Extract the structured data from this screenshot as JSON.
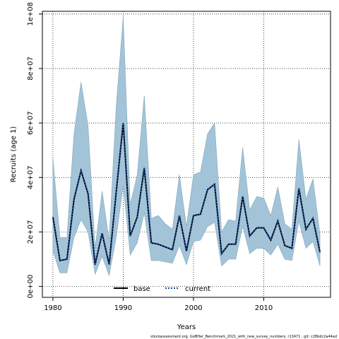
{
  "chart_data": {
    "type": "area",
    "xlabel": "Years",
    "ylabel": "Recruits (age 1)",
    "xlim": [
      1978.5,
      2019.5
    ],
    "ylim": [
      -4000000,
      101000000
    ],
    "x_ticks": [
      1980,
      1990,
      2000,
      2010
    ],
    "x_tick_labels": [
      "1980",
      "1990",
      "2000",
      "2010"
    ],
    "y_ticks": [
      0,
      20000000,
      40000000,
      60000000,
      80000000,
      100000000
    ],
    "y_tick_labels": [
      "0e+00",
      "2e+07",
      "4e+07",
      "6e+07",
      "8e+07",
      "1e+08"
    ],
    "grid": true,
    "years": [
      1980,
      1981,
      1982,
      1983,
      1984,
      1985,
      1986,
      1987,
      1988,
      1989,
      1990,
      1991,
      1992,
      1993,
      1994,
      1995,
      1996,
      1997,
      1998,
      1999,
      2000,
      2001,
      2002,
      2003,
      2004,
      2005,
      2006,
      2007,
      2008,
      2009,
      2010,
      2011,
      2012,
      2013,
      2014,
      2015,
      2016,
      2017,
      2018
    ],
    "band": {
      "upper": [
        47000000,
        18000000,
        18000000,
        56000000,
        75000000,
        59000000,
        14000000,
        35000000,
        17000000,
        66000000,
        99000000,
        30000000,
        41000000,
        70000000,
        25000000,
        26000000,
        23000000,
        21000000,
        41000000,
        22000000,
        41000000,
        42000000,
        56000000,
        60000000,
        20000000,
        24500000,
        24000000,
        51000000,
        28000000,
        33000000,
        32500000,
        26000000,
        36500000,
        23000000,
        21000000,
        54000000,
        32000000,
        39500000,
        19000000
      ],
      "lower": [
        13000000,
        5000000,
        5000000,
        18000000,
        24500000,
        20000000,
        4500000,
        11000000,
        4000000,
        18000000,
        37000000,
        11500000,
        16000000,
        27000000,
        9500000,
        9500000,
        9000000,
        8500000,
        15000000,
        8000000,
        16500000,
        17000000,
        22000000,
        23500000,
        7500000,
        10000000,
        10000000,
        22000000,
        12000000,
        14000000,
        14000000,
        11500000,
        15500000,
        10000000,
        9500000,
        24000000,
        14000000,
        16500000,
        7500000
      ]
    },
    "series": [
      {
        "name": "base",
        "style": "solid",
        "color": "#000000",
        "values": [
          25500000,
          9500000,
          10000000,
          32000000,
          42500000,
          34000000,
          8000000,
          19500000,
          8000000,
          34500000,
          60000000,
          18500000,
          25500000,
          43500000,
          16000000,
          15500000,
          14500000,
          13500000,
          26000000,
          13000000,
          26000000,
          26500000,
          35500000,
          37500000,
          12000000,
          15500000,
          15500000,
          33000000,
          18500000,
          21500000,
          21500000,
          17000000,
          24000000,
          15000000,
          14000000,
          36000000,
          21000000,
          25000000,
          12500000
        ]
      },
      {
        "name": "current",
        "style": "dotted",
        "color": "#1f4e9e",
        "values": [
          25500000,
          9500000,
          10000000,
          32000000,
          42500000,
          34000000,
          8000000,
          19500000,
          8000000,
          34500000,
          60000000,
          18500000,
          25500000,
          43500000,
          16000000,
          15500000,
          14500000,
          13500000,
          26000000,
          13000000,
          26000000,
          26500000,
          35500000,
          37500000,
          12000000,
          15500000,
          15500000,
          33000000,
          18500000,
          21500000,
          21500000,
          17000000,
          24000000,
          15000000,
          14000000,
          36000000,
          21000000,
          25000000,
          12500000
        ]
      }
    ],
    "legend": {
      "position": "bottom-center",
      "entries": [
        "base",
        "current"
      ]
    },
    "band_color": "#a3c4d8",
    "footer": "stockassessment.org, GoBHer_Benchmark_2021_with_new_survey_numbers, r13471 , git: c28bdc2a44ad"
  }
}
